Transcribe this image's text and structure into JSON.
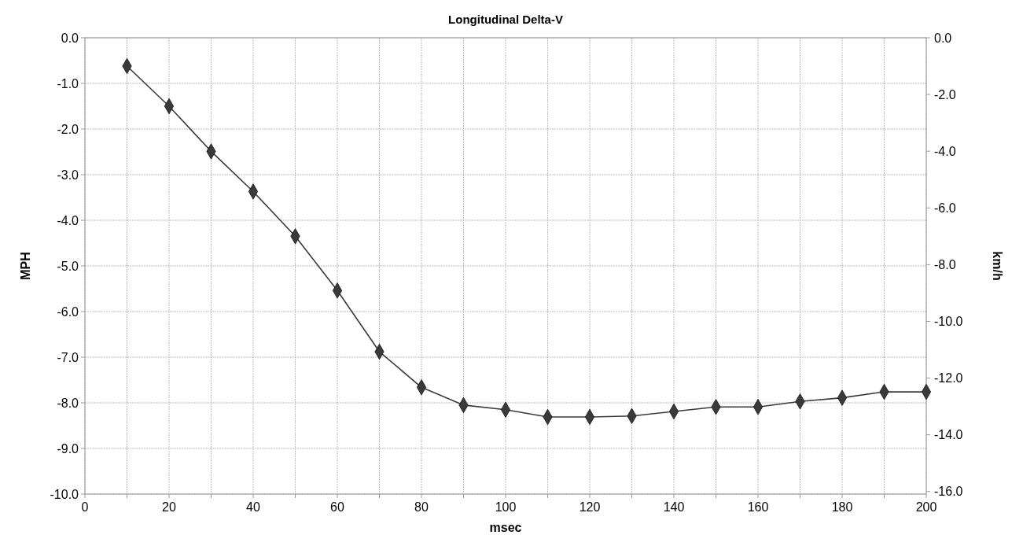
{
  "chart_data": {
    "type": "line",
    "title": "Longitudinal Delta-V",
    "xlabel": "msec",
    "ylabel": "MPH",
    "y2label": "km/h",
    "x": [
      10,
      20,
      30,
      40,
      50,
      60,
      70,
      80,
      90,
      100,
      110,
      120,
      130,
      140,
      150,
      160,
      170,
      180,
      190,
      200
    ],
    "series": [
      {
        "color": "#3a3a3a",
        "values": [
          -0.62,
          -1.5,
          -2.49,
          -3.37,
          -4.35,
          -5.54,
          -6.88,
          -7.66,
          -8.05,
          -8.15,
          -8.31,
          -8.31,
          -8.29,
          -8.19,
          -8.09,
          -8.09,
          -7.97,
          -7.89,
          -7.76,
          -7.76
        ]
      }
    ],
    "marker": "diamond",
    "line_style": "solid",
    "grid": true,
    "xlim": [
      0,
      200
    ],
    "xticks": [
      0,
      {
        "value": 10,
        "label": null
      },
      20,
      {
        "value": 30,
        "label": null
      },
      40,
      {
        "value": 50,
        "label": null
      },
      60,
      {
        "value": 70,
        "label": null
      },
      80,
      {
        "value": 90,
        "label": null
      },
      100,
      {
        "value": 110,
        "label": null
      },
      120,
      {
        "value": 130,
        "label": null
      },
      140,
      {
        "value": 150,
        "label": null
      },
      160,
      {
        "value": 170,
        "label": null
      },
      180,
      {
        "value": 190,
        "label": null
      },
      200
    ],
    "ylim": [
      -10,
      0
    ],
    "yticks": [
      {
        "value": 0,
        "label": "0.0"
      },
      {
        "value": -1,
        "label": "-1.0"
      },
      {
        "value": -2,
        "label": "-2.0"
      },
      {
        "value": -3,
        "label": "-3.0"
      },
      {
        "value": -4,
        "label": "-4.0"
      },
      {
        "value": -5,
        "label": "-5.0"
      },
      {
        "value": -6,
        "label": "-6.0"
      },
      {
        "value": -7,
        "label": "-7.0"
      },
      {
        "value": -8,
        "label": "-8.0"
      },
      {
        "value": -9,
        "label": "-9.0"
      },
      {
        "value": -10,
        "label": "-10.0"
      }
    ],
    "y2lim": [
      -16.09,
      0
    ],
    "y2ticks": [
      {
        "value": 0,
        "label": "0.0"
      },
      {
        "value": -2,
        "label": "-2.0"
      },
      {
        "value": -4,
        "label": "-4.0"
      },
      {
        "value": -6,
        "label": "-6.0"
      },
      {
        "value": -8,
        "label": "-8.0"
      },
      {
        "value": -10,
        "label": "-10.0"
      },
      {
        "value": -12,
        "label": "-12.0"
      },
      {
        "value": -14,
        "label": "-14.0"
      },
      {
        "value": -16,
        "label": "-16.0"
      }
    ]
  }
}
